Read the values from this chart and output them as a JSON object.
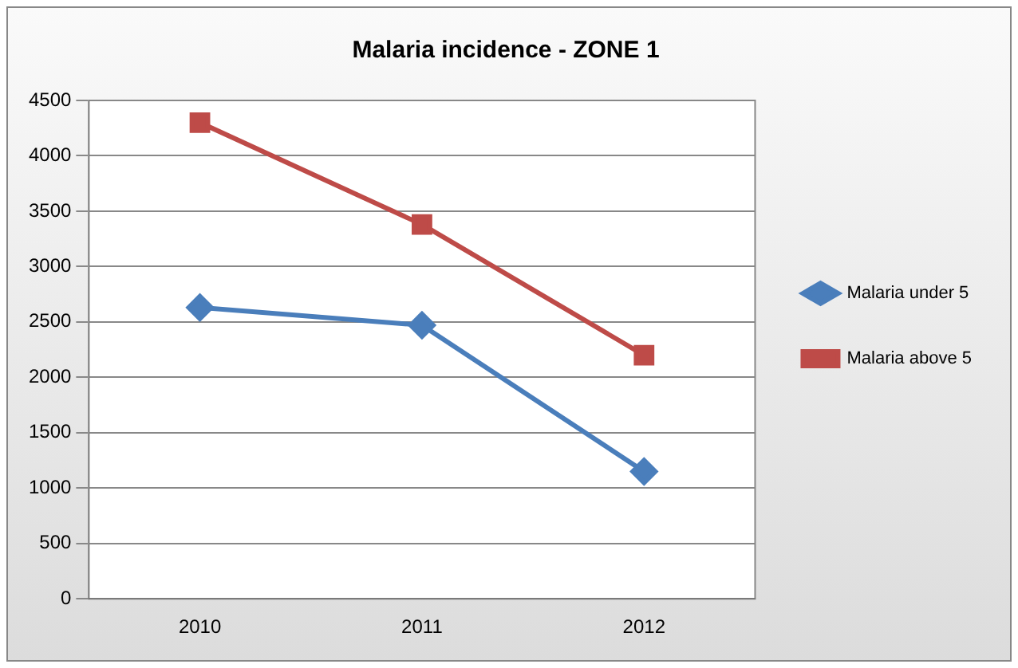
{
  "chart_data": {
    "type": "line",
    "title": "Malaria incidence - ZONE 1",
    "categories": [
      "2010",
      "2011",
      "2012"
    ],
    "series": [
      {
        "name": "Malaria under 5",
        "color": "#4a7ebb",
        "marker": "diamond",
        "values": [
          2630,
          2470,
          1150
        ]
      },
      {
        "name": "Malaria above 5",
        "color": "#be4b48",
        "marker": "square",
        "values": [
          4300,
          3380,
          2200
        ]
      }
    ],
    "ylim": [
      0,
      4500
    ],
    "yticks": [
      0,
      500,
      1000,
      1500,
      2000,
      2500,
      3000,
      3500,
      4000,
      4500
    ],
    "grid": "y",
    "legend": "right"
  }
}
